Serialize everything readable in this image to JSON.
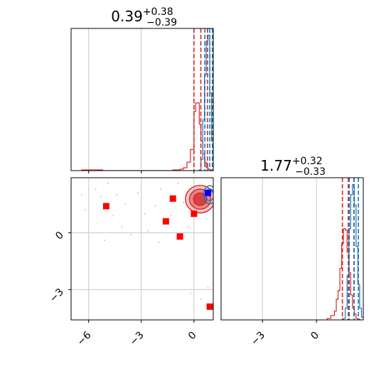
{
  "chart_data": [
    {
      "panel": "marginal-param-1",
      "type": "histogram",
      "title": {
        "value": "0.39",
        "plus": "+0.38",
        "minus": "−0.39"
      },
      "xlim": [
        -7.0,
        1.1
      ],
      "xticks": [
        -6,
        -3,
        0
      ],
      "xticklabels": [
        "−6",
        "−3",
        "0"
      ],
      "grid": true,
      "series": [
        {
          "color": "#d62728",
          "bins": [
            -6.4,
            -6.0,
            -5.6,
            -5.2,
            -4.8,
            -4.4,
            -4.0,
            -3.6,
            -3.2,
            -2.8,
            -2.4,
            -2.0,
            -1.6,
            -1.2,
            -0.8,
            -0.6,
            -0.4,
            -0.2,
            0.0,
            0.1,
            0.2,
            0.3,
            0.4,
            0.5,
            0.6,
            0.7,
            0.8,
            0.9,
            1.0,
            1.1
          ],
          "counts": [
            0.005,
            0.005,
            0.005,
            0,
            0,
            0,
            0,
            0,
            0,
            0,
            0,
            0,
            0,
            0.005,
            0.01,
            0.02,
            0.06,
            0.15,
            0.42,
            0.48,
            0.48,
            0.33,
            0.21,
            0.12,
            0.06,
            0.02,
            0.01,
            0.005,
            0
          ],
          "quantiles": [
            0.0,
            0.39,
            0.77
          ]
        },
        {
          "color": "#1f77b4",
          "bins": [
            0.3,
            0.4,
            0.5,
            0.6,
            0.7,
            0.8,
            0.9,
            1.0,
            1.1,
            1.2,
            1.3,
            1.4
          ],
          "counts": [
            0.005,
            0.08,
            0.36,
            0.68,
            0.92,
            0.96,
            0.55,
            0.21,
            0.07,
            0.02,
            0.005
          ],
          "quantiles": [
            0.62,
            0.9,
            1.05
          ]
        }
      ]
    },
    {
      "panel": "marginal-param-2",
      "type": "histogram",
      "title": {
        "value": "1.77",
        "plus": "+0.32",
        "minus": "−0.33"
      },
      "xlim": [
        -5.3,
        2.6
      ],
      "xticks": [
        -3,
        0
      ],
      "xticklabels": [
        "−3",
        "0"
      ],
      "grid": true,
      "series": [
        {
          "color": "#d62728",
          "bins": [
            0.6,
            0.8,
            1.0,
            1.1,
            1.2,
            1.3,
            1.4,
            1.5,
            1.6,
            1.7,
            1.8,
            1.9,
            2.0,
            2.1,
            2.2,
            2.3,
            2.4
          ],
          "counts": [
            0.01,
            0.03,
            0.06,
            0.14,
            0.2,
            0.35,
            0.52,
            0.62,
            0.61,
            0.46,
            0.32,
            0.17,
            0.08,
            0.04,
            0.01,
            0.005
          ],
          "quantiles": [
            1.44,
            1.77,
            2.09
          ]
        },
        {
          "color": "#1f77b4",
          "bins": [
            1.5,
            1.6,
            1.7,
            1.8,
            1.9,
            2.0,
            2.1,
            2.2,
            2.3,
            2.4,
            2.5,
            2.6
          ],
          "counts": [
            0.01,
            0.08,
            0.3,
            0.62,
            0.85,
            0.92,
            0.78,
            0.5,
            0.24,
            0.08,
            0.02
          ],
          "quantiles": [
            1.82,
            2.08,
            2.33
          ]
        }
      ]
    },
    {
      "panel": "joint-2d",
      "type": "scatter",
      "xlim": [
        -7.0,
        1.1
      ],
      "ylim": [
        -4.6,
        2.9
      ],
      "xticks": [
        -6,
        -3,
        0
      ],
      "xticklabels": [
        "−6",
        "−3",
        "0"
      ],
      "yticks": [
        -3,
        0
      ],
      "yticklabels": [
        "−3",
        "0"
      ],
      "grid": true,
      "contour_red": {
        "color": "#d62728",
        "center": [
          0.35,
          1.77
        ],
        "spread": [
          0.38,
          0.33
        ]
      },
      "contour_blue": {
        "color": "#1f77b4",
        "center": [
          0.9,
          2.0
        ],
        "spread": [
          0.18,
          0.24
        ]
      },
      "red_markers": [
        [
          -5.0,
          1.4
        ],
        [
          -1.2,
          1.8
        ],
        [
          -1.6,
          0.6
        ],
        [
          -0.8,
          -0.2
        ],
        [
          0.0,
          1.0
        ],
        [
          0.9,
          -3.9
        ]
      ],
      "blue_marker": [
        0.8,
        2.1
      ],
      "faint_points": [
        [
          -5.6,
          2.3
        ],
        [
          -4.9,
          2.6
        ],
        [
          -5.3,
          1.9
        ],
        [
          -6.2,
          1.2
        ],
        [
          -4.6,
          0.9
        ],
        [
          -3.9,
          1.5
        ],
        [
          -3.2,
          2.1
        ],
        [
          -2.8,
          1.0
        ],
        [
          -2.2,
          1.4
        ],
        [
          -4.1,
          0.3
        ],
        [
          -3.6,
          -0.1
        ],
        [
          -5.1,
          -0.4
        ],
        [
          -2.6,
          0.1
        ],
        [
          -1.9,
          2.3
        ],
        [
          -1.3,
          0.9
        ],
        [
          -0.6,
          1.6
        ],
        [
          -0.3,
          0.3
        ],
        [
          -2.0,
          -0.5
        ],
        [
          -4.4,
          2.0
        ],
        [
          -0.2,
          -3.2
        ],
        [
          0.4,
          -3.5
        ],
        [
          0.8,
          -2.9
        ],
        [
          -6.4,
          2.0
        ],
        [
          -0.9,
          2.6
        ]
      ]
    }
  ]
}
